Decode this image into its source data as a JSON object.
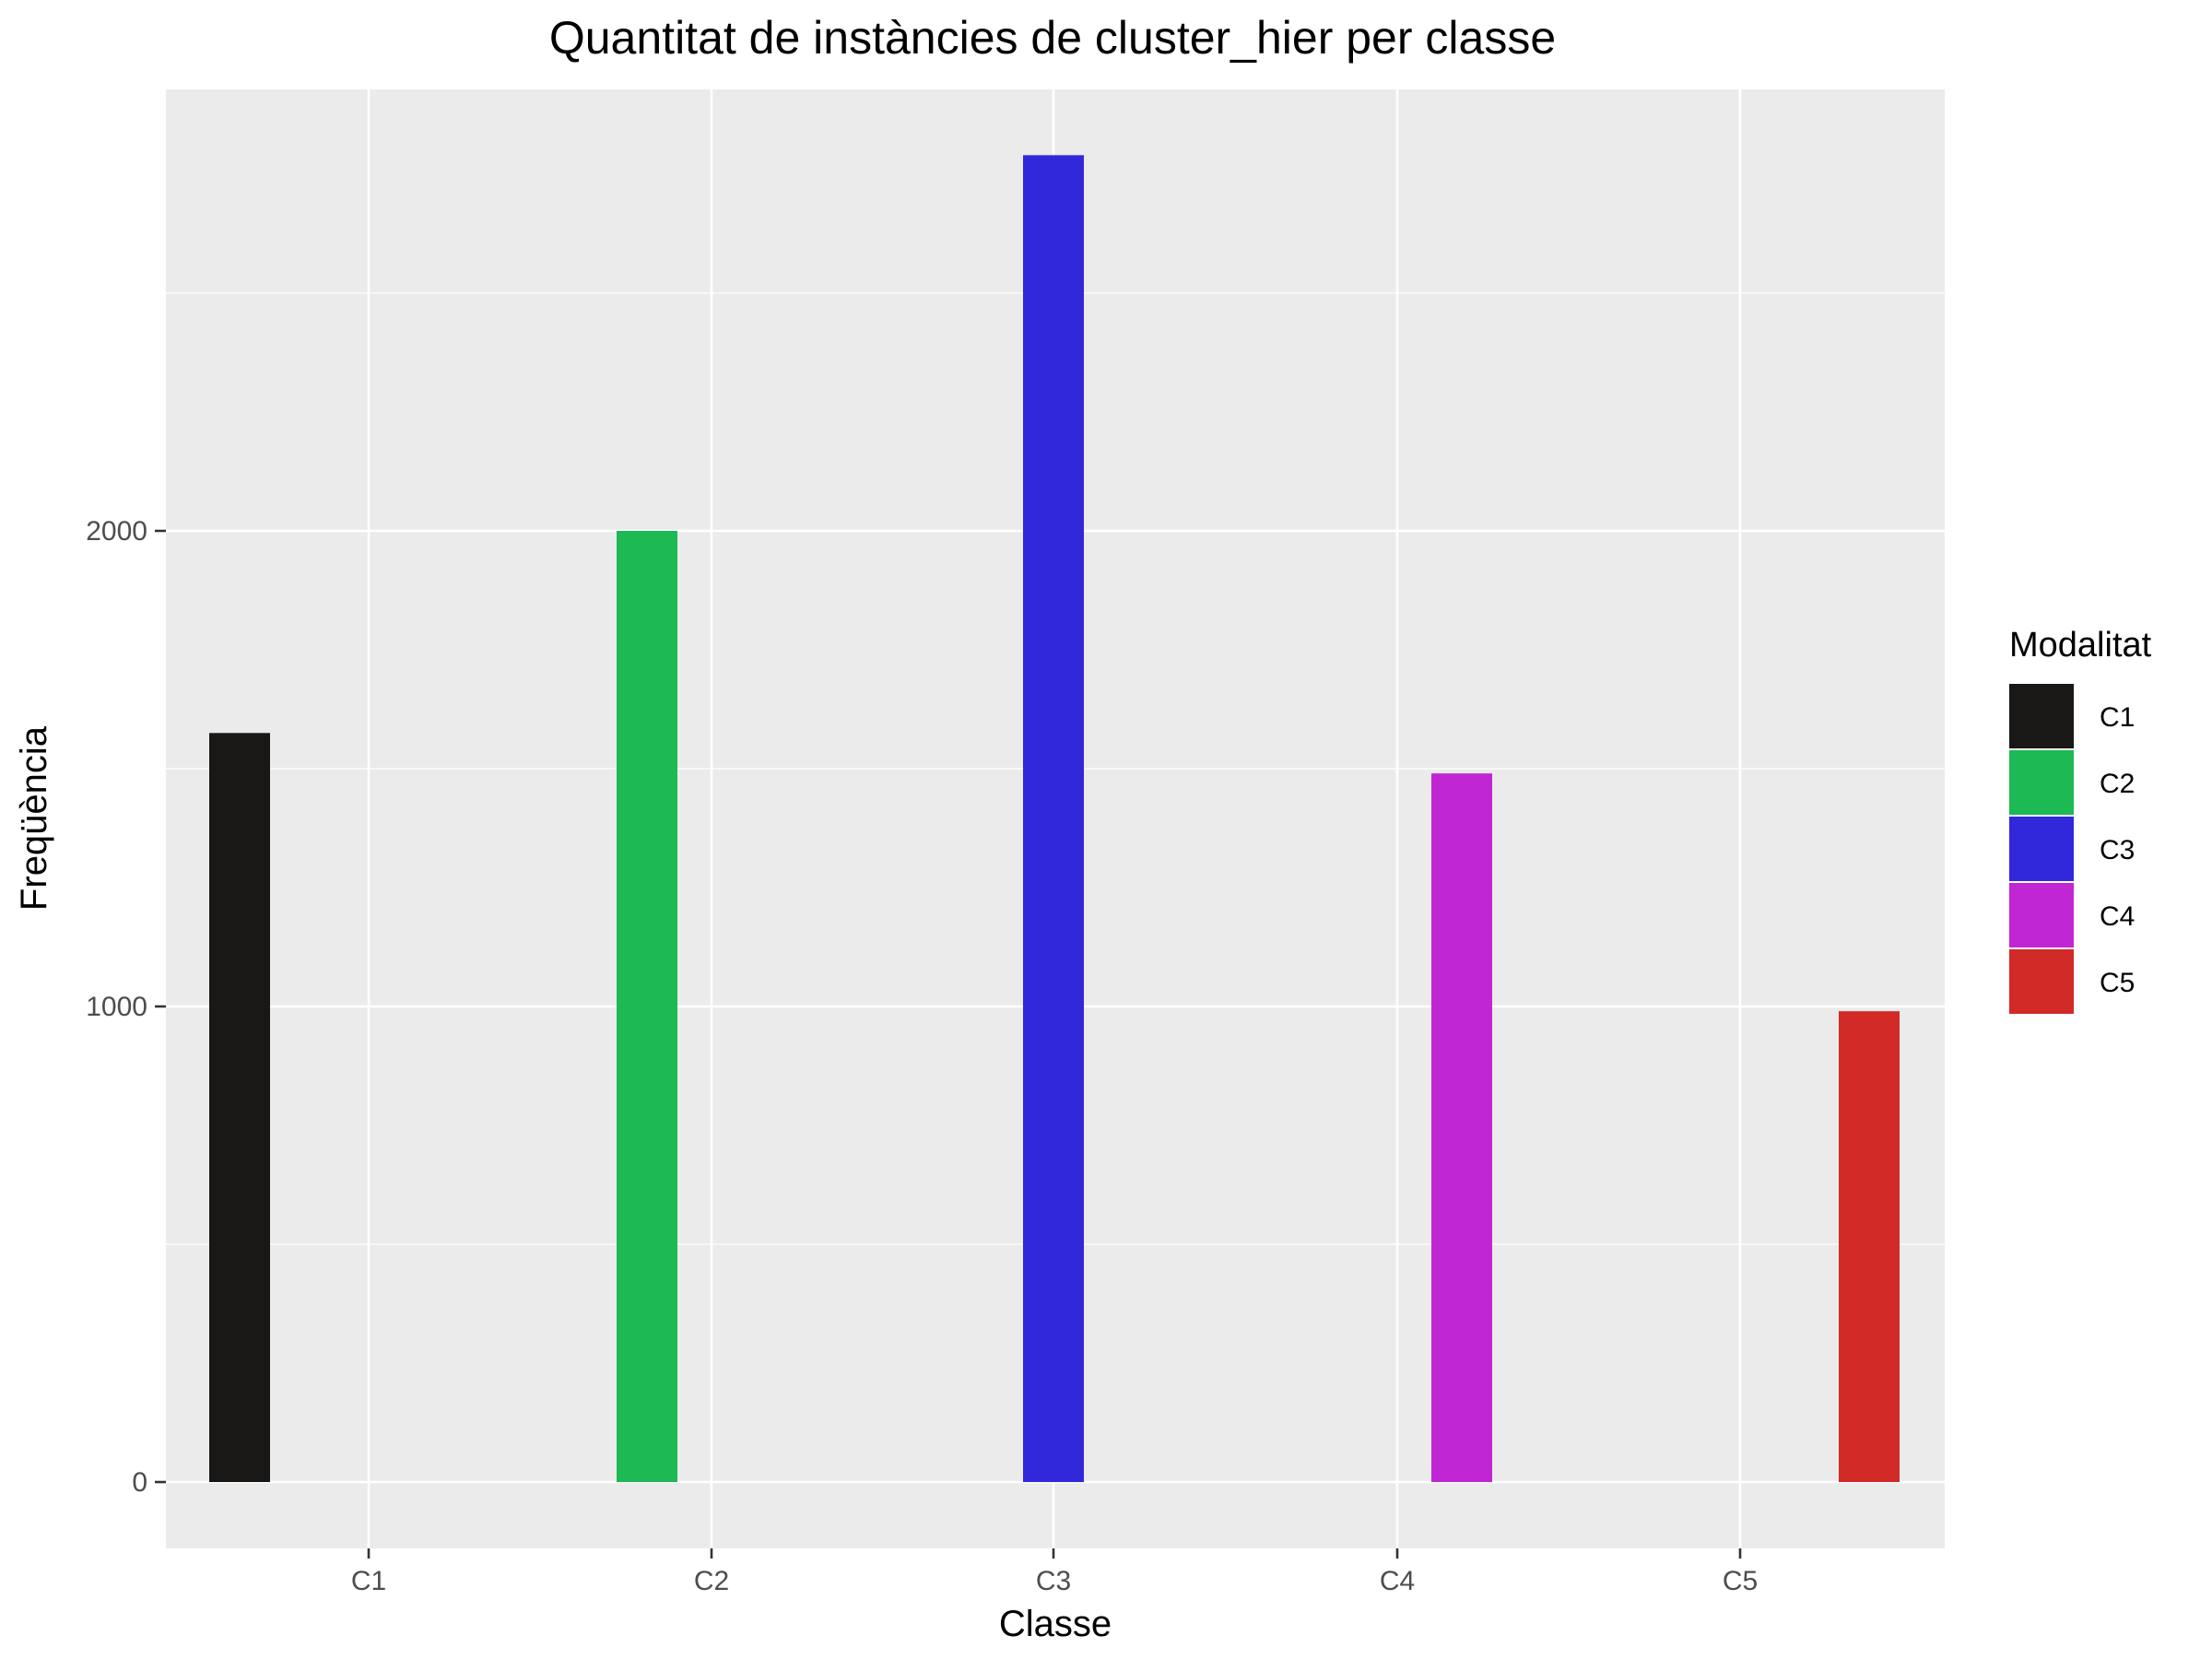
{
  "chart_data": {
    "type": "bar",
    "title": "Quantitat de instàncies de cluster_hier per classe",
    "xlabel": "Classe",
    "ylabel": "Freqüència",
    "categories": [
      "C1",
      "C2",
      "C3",
      "C4",
      "C5"
    ],
    "y_ticks": [
      0,
      1000,
      2000
    ],
    "ylim": [
      0,
      2950
    ],
    "grid": true,
    "legend": {
      "title": "Modalitat",
      "position": "right",
      "entries": [
        "C1",
        "C2",
        "C3",
        "C4",
        "C5"
      ]
    },
    "series": [
      {
        "name": "C1",
        "color": "#1a1717",
        "values": [
          1575,
          0,
          0,
          0,
          0
        ]
      },
      {
        "name": "C2",
        "color": "#1db954",
        "values": [
          0,
          2000,
          0,
          0,
          0
        ]
      },
      {
        "name": "C3",
        "color": "#3228db",
        "values": [
          0,
          0,
          2790,
          0,
          0
        ]
      },
      {
        "name": "C4",
        "color": "#c026d3",
        "values": [
          0,
          0,
          0,
          1490,
          0
        ]
      },
      {
        "name": "C5",
        "color": "#d12a27",
        "values": [
          0,
          0,
          0,
          0,
          990
        ]
      }
    ]
  }
}
